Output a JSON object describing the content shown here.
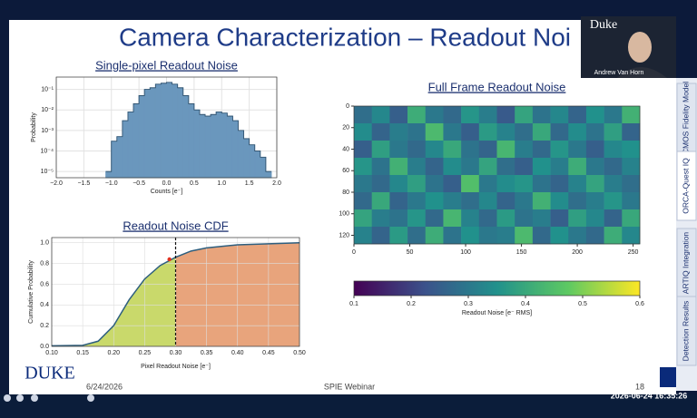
{
  "slide": {
    "title": "Camera Characterization – Readout Noi",
    "date": "6/24/2026",
    "event": "SPIE Webinar",
    "page": "18",
    "logo": "DUKE"
  },
  "video": {
    "logo": "Duke",
    "name": "Andrew Van Horn"
  },
  "tabs": [
    "CMOS Fidelity Model",
    "ORCA-Quest IQ",
    "ARTIQ Integration",
    "Detection Results"
  ],
  "timestamp": "2026-06-24 16:35:26",
  "chart_data": [
    {
      "type": "histogram",
      "title": "Single-pixel Readout Noise",
      "xlabel": "Counts [e⁻]",
      "ylabel": "Probability",
      "color": "#6a97bd",
      "edge_color": "#2f4f6a",
      "log_y": true,
      "grid": true,
      "bins": [
        -1.1,
        -1.0,
        -0.9,
        -0.8,
        -0.7,
        -0.6,
        -0.5,
        -0.4,
        -0.3,
        -0.2,
        -0.1,
        0,
        0.1,
        0.2,
        0.3,
        0.4,
        0.5,
        0.6,
        0.7,
        0.8,
        0.9,
        1.0,
        1.1,
        1.2,
        1.3,
        1.4,
        1.5,
        1.6,
        1.7,
        1.8,
        1.9
      ],
      "values": [
        1e-05,
        0.0003,
        0.0005,
        0.003,
        0.008,
        0.02,
        0.05,
        0.1,
        0.12,
        0.18,
        0.2,
        0.22,
        0.18,
        0.12,
        0.05,
        0.02,
        0.01,
        0.006,
        0.005,
        0.006,
        0.008,
        0.007,
        0.005,
        0.003,
        0.001,
        0.0004,
        0.0002,
        0.0001,
        5e-05,
        1e-05
      ],
      "xlim": [
        -2,
        2
      ],
      "xticks": [
        {
          "value": -2,
          "label": "−2.0"
        },
        {
          "value": -1.5,
          "label": "−1.5"
        },
        {
          "value": -1,
          "label": "−1.0"
        },
        {
          "value": -0.5,
          "label": "−0.5"
        },
        {
          "value": 0,
          "label": "0.0"
        },
        0.5,
        {
          "value": 1,
          "label": "1.0"
        },
        1.5,
        {
          "value": 2,
          "label": "2.0"
        }
      ],
      "ylim": [
        5e-06,
        0.4
      ],
      "yticks": [
        {
          "value": 1e-05,
          "label": "10⁻⁵"
        },
        {
          "value": 0.0001,
          "label": "10⁻⁴"
        },
        {
          "value": 0.001,
          "label": "10⁻³"
        },
        {
          "value": 0.01,
          "label": "10⁻²"
        },
        {
          "value": 0.1,
          "label": "10⁻¹"
        }
      ]
    },
    {
      "type": "area",
      "title": "Readout Noise CDF",
      "xlabel": "Pixel Readout Noise [e⁻]",
      "ylabel": "Cumulative Probability",
      "color": "#2e5f7f",
      "fill_below": "#c9d96b",
      "fill_above": "#e8a47c",
      "grid": true,
      "x": [
        0.1,
        0.15,
        0.175,
        0.2,
        0.225,
        0.25,
        0.275,
        0.3,
        0.325,
        0.35,
        0.4,
        0.45,
        0.5
      ],
      "values": [
        0.005,
        0.01,
        0.05,
        0.2,
        0.45,
        0.65,
        0.78,
        0.86,
        0.92,
        0.95,
        0.98,
        0.99,
        1.0
      ],
      "threshold": 0.3,
      "marker": {
        "x": 0.29,
        "y": 0.84,
        "color": "#e0301e"
      },
      "xlim": [
        0.1,
        0.5
      ],
      "xticks": [
        {
          "value": 0.1,
          "label": "0.10"
        },
        0.15,
        {
          "value": 0.2,
          "label": "0.20"
        },
        0.25,
        {
          "value": 0.3,
          "label": "0.30"
        },
        0.35,
        {
          "value": 0.4,
          "label": "0.40"
        },
        0.45,
        {
          "value": 0.5,
          "label": "0.50"
        }
      ],
      "ylim": [
        0,
        1.05
      ],
      "yticks": [
        {
          "value": 0,
          "label": "0.0"
        },
        0.2,
        0.4,
        0.6,
        0.8,
        {
          "value": 1,
          "label": "1.0"
        }
      ]
    },
    {
      "type": "heatmap",
      "title": "Full Frame Readout Noise",
      "clabel": "Readout Noise [e⁻ RMS]",
      "xlim": [
        0,
        256
      ],
      "xticks": [
        0,
        50,
        100,
        150,
        200,
        250
      ],
      "ylim": [
        0,
        128
      ],
      "invert_y": true,
      "yticks": [
        0,
        20,
        40,
        60,
        80,
        100,
        120
      ],
      "clim": [
        0.1,
        0.6
      ],
      "cticks": [
        0.1,
        0.2,
        0.3,
        0.4,
        0.5,
        0.6
      ],
      "values": [
        [
          0.28,
          0.33,
          0.25,
          0.41,
          0.3,
          0.27,
          0.36,
          0.31,
          0.24,
          0.39,
          0.29,
          0.33,
          0.26,
          0.35,
          0.3,
          0.42
        ],
        [
          0.34,
          0.26,
          0.31,
          0.29,
          0.44,
          0.3,
          0.25,
          0.37,
          0.32,
          0.28,
          0.4,
          0.27,
          0.34,
          0.29,
          0.38,
          0.26
        ],
        [
          0.25,
          0.38,
          0.3,
          0.27,
          0.33,
          0.4,
          0.29,
          0.26,
          0.43,
          0.31,
          0.27,
          0.36,
          0.3,
          0.25,
          0.33,
          0.35
        ],
        [
          0.36,
          0.29,
          0.42,
          0.31,
          0.26,
          0.34,
          0.3,
          0.39,
          0.28,
          0.25,
          0.35,
          0.31,
          0.41,
          0.3,
          0.27,
          0.32
        ],
        [
          0.3,
          0.27,
          0.33,
          0.38,
          0.29,
          0.25,
          0.45,
          0.3,
          0.34,
          0.36,
          0.29,
          0.26,
          0.32,
          0.39,
          0.31,
          0.28
        ],
        [
          0.27,
          0.4,
          0.26,
          0.3,
          0.35,
          0.31,
          0.28,
          0.33,
          0.26,
          0.3,
          0.42,
          0.34,
          0.28,
          0.31,
          0.36,
          0.3
        ],
        [
          0.39,
          0.31,
          0.29,
          0.36,
          0.27,
          0.43,
          0.32,
          0.27,
          0.37,
          0.29,
          0.31,
          0.25,
          0.38,
          0.33,
          0.26,
          0.4
        ],
        [
          0.32,
          0.26,
          0.37,
          0.28,
          0.41,
          0.29,
          0.35,
          0.3,
          0.31,
          0.44,
          0.27,
          0.35,
          0.3,
          0.27,
          0.41,
          0.33
        ]
      ]
    }
  ]
}
